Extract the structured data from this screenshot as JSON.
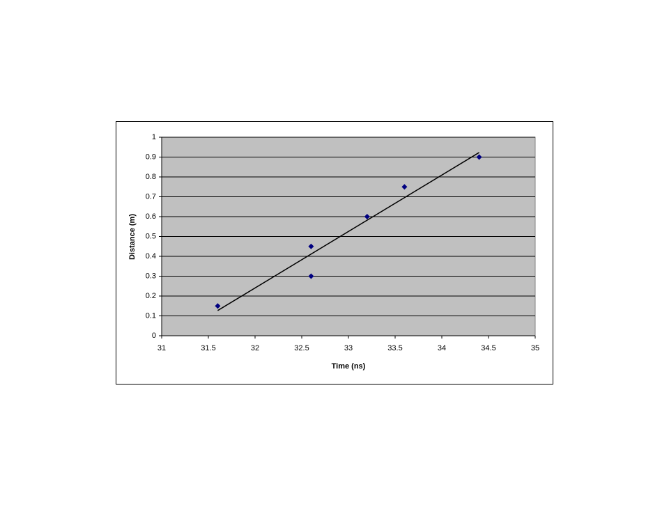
{
  "chart_data": {
    "type": "scatter",
    "x_label": "Time (ns)",
    "y_label": "Distance (m)",
    "series": [
      {
        "color": "#000080",
        "x": [
          31.6,
          32.6,
          32.6,
          33.2,
          33.6,
          34.4
        ],
        "values": [
          0.15,
          0.45,
          0.3,
          0.6,
          0.75,
          0.9
        ]
      }
    ],
    "trendline": {
      "color": "#000000",
      "x": [
        31.6,
        34.4
      ],
      "values": [
        0.127,
        0.923
      ]
    },
    "xlim": [
      31,
      35
    ],
    "xticks": [
      31,
      31.5,
      32,
      32.5,
      33,
      33.5,
      34,
      34.5,
      35
    ],
    "ylim": [
      0,
      1
    ],
    "yticks": [
      0,
      0.1,
      0.2,
      0.3,
      0.4,
      0.5,
      0.6,
      0.7,
      0.8,
      0.9,
      1
    ],
    "grid": true,
    "plot_background": "#c0c0c0"
  }
}
